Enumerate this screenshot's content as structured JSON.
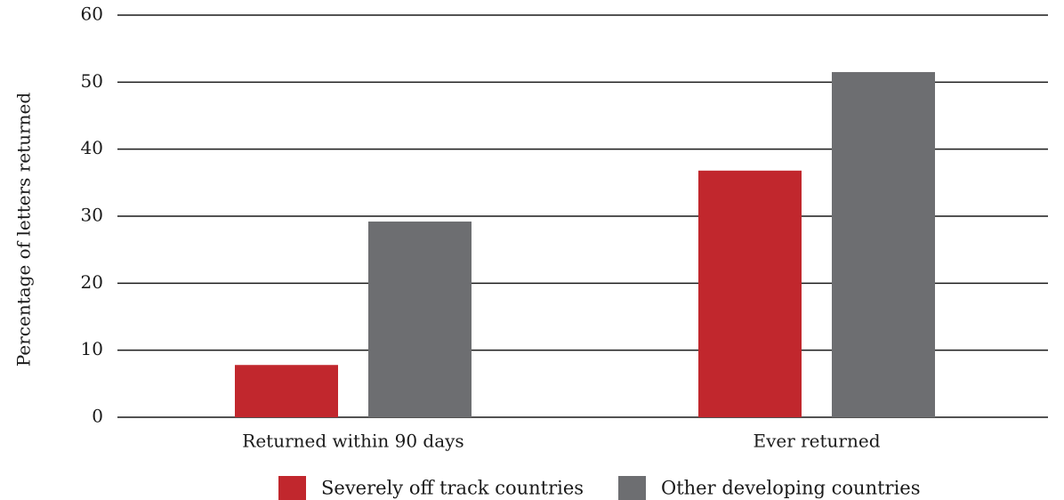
{
  "chart_data": {
    "type": "bar",
    "categories": [
      "Returned within 90 days",
      "Ever returned"
    ],
    "series": [
      {
        "name": "Severely off track countries",
        "values": [
          7.8,
          36.8
        ],
        "color": "#c1272d"
      },
      {
        "name": "Other developing countries",
        "values": [
          29.2,
          51.5
        ],
        "color": "#6d6e71"
      }
    ],
    "ylabel": "Percentage of letters returned",
    "ylim": [
      0,
      60
    ],
    "yticks": [
      0,
      10,
      20,
      30,
      40,
      50,
      60
    ],
    "grid": true,
    "legend": "bottom"
  }
}
